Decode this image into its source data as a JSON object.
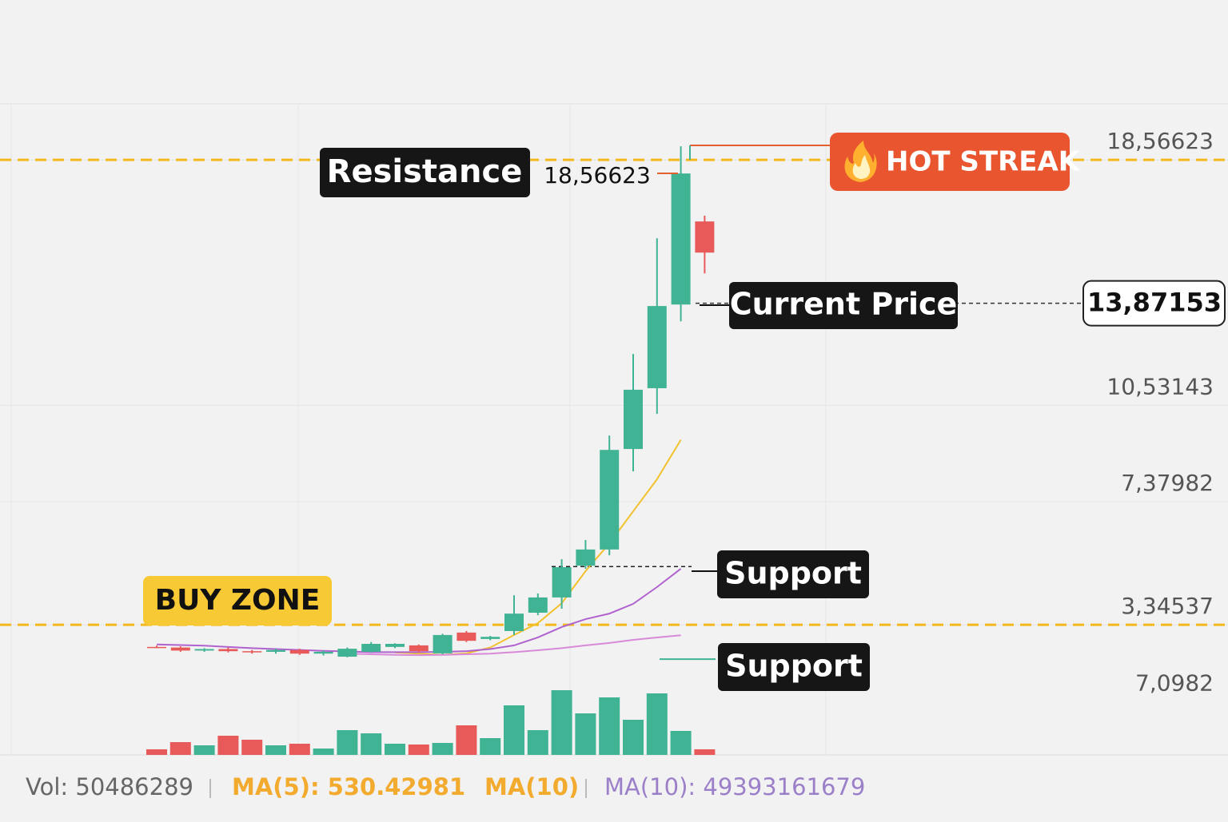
{
  "chart_data": {
    "type": "candlestick",
    "open": [
      2.62,
      2.6,
      2.5,
      2.55,
      2.48,
      2.46,
      2.52,
      2.4,
      2.3,
      2.46,
      2.62,
      2.67,
      2.41,
      3.09,
      2.88,
      3.14,
      3.74,
      4.24,
      5.28,
      5.81,
      9.1,
      11.09,
      13.83,
      16.55
    ],
    "high": [
      2.66,
      2.64,
      2.58,
      2.6,
      2.52,
      2.56,
      2.56,
      2.5,
      2.6,
      2.78,
      2.74,
      2.7,
      3.05,
      3.14,
      2.98,
      4.31,
      4.37,
      5.49,
      6.12,
      9.54,
      12.21,
      16.0,
      19.01,
      16.74
    ],
    "low": [
      2.58,
      2.46,
      2.46,
      2.44,
      2.4,
      2.4,
      2.36,
      2.34,
      2.28,
      2.44,
      2.58,
      2.44,
      2.38,
      2.78,
      2.84,
      3.01,
      3.66,
      3.87,
      5.18,
      5.62,
      8.37,
      10.25,
      13.28,
      14.85
    ],
    "close": [
      2.6,
      2.5,
      2.55,
      2.48,
      2.46,
      2.52,
      2.4,
      2.46,
      2.56,
      2.72,
      2.72,
      2.48,
      3.01,
      2.82,
      2.95,
      3.71,
      4.24,
      5.23,
      5.81,
      9.07,
      11.04,
      13.78,
      18.12,
      15.53
    ],
    "colors": {
      "up": "#3fb394",
      "down": "#e85a5a"
    },
    "ylim": [
      0,
      20.4
    ],
    "yticks": [
      {
        "value": 18.56623,
        "label": "18,56623"
      },
      {
        "value": 10.53143,
        "label": "10,53143"
      },
      {
        "value": 7.37982,
        "label": "7,37982"
      },
      {
        "value": 3.34537,
        "label": "3,34537"
      }
    ],
    "grid": true,
    "ma_lines": [
      {
        "color": "#f2c12e",
        "values": [
          null,
          null,
          null,
          null,
          null,
          null,
          null,
          null,
          null,
          null,
          2.44,
          2.4,
          2.36,
          2.41,
          2.6,
          3.01,
          3.4,
          4.05,
          5.1,
          6.01,
          7.06,
          8.11,
          9.4,
          null
        ]
      },
      {
        "color": "#b062cf",
        "values": [
          2.7,
          2.68,
          2.66,
          2.62,
          2.58,
          2.55,
          2.52,
          2.49,
          2.47,
          2.45,
          2.45,
          2.45,
          2.46,
          2.48,
          2.55,
          2.67,
          2.93,
          3.27,
          3.53,
          3.71,
          4.03,
          4.58,
          5.18,
          null
        ]
      },
      {
        "color": "#d88ad9",
        "values": [
          null,
          null,
          null,
          null,
          null,
          null,
          null,
          null,
          2.4,
          2.38,
          2.36,
          2.35,
          2.36,
          2.38,
          2.4,
          2.45,
          2.51,
          2.58,
          2.67,
          2.75,
          2.85,
          2.93,
          3.0,
          null
        ]
      }
    ],
    "volume": {
      "values": [
        0.56,
        1.28,
        0.96,
        1.92,
        1.52,
        0.96,
        1.12,
        0.64,
        2.48,
        2.16,
        1.12,
        1.04,
        1.2,
        2.96,
        1.68,
        4.96,
        2.48,
        6.48,
        4.16,
        5.76,
        3.52,
        6.16,
        2.4,
        0.56
      ],
      "ylim": [
        0,
        8
      ],
      "yticks": [
        {
          "value": 7.0982,
          "label": "7,0982"
        }
      ]
    },
    "resistance": {
      "label": "Resistance",
      "value": 18.56623,
      "value_label": "18,56623"
    },
    "buy_zone": {
      "label": "BUY ZONE",
      "value": 3.34537
    },
    "current_price": {
      "label": "Current Price",
      "value": 13.87153,
      "value_label": "13,87153"
    },
    "supports": [
      {
        "label": "Support",
        "value": 5.25
      },
      {
        "label": "Support",
        "value": 2.22
      }
    ],
    "badge": "HOT STREAK",
    "footer": [
      "Vol: 50486289",
      "MA(5): 530.42981",
      "MA(10)",
      "MA(10): 49393161679"
    ]
  }
}
